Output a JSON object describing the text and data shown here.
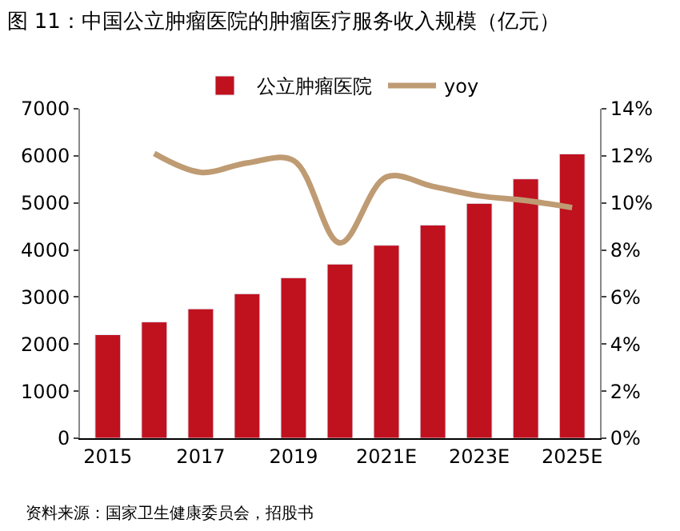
{
  "chart_data": {
    "type": "bar",
    "title": "图 11：中国公立肿瘤医院的肿瘤医疗服务收入规模（亿元）",
    "categories": [
      "2015",
      null,
      "2017",
      null,
      "2019",
      null,
      "2021E",
      null,
      "2023E",
      null,
      "2025E"
    ],
    "series": [
      {
        "name": "公立肿瘤医院",
        "color": "#c0111f",
        "values": [
          2200,
          2470,
          2750,
          3070,
          3410,
          3700,
          4100,
          4530,
          4990,
          5510,
          6040
        ]
      },
      {
        "name": "yoy",
        "type": "line",
        "axis": "y2",
        "color": "#bf9b73",
        "values": [
          null,
          12.1,
          11.3,
          11.7,
          11.8,
          8.3,
          11.1,
          10.7,
          10.3,
          10.1,
          9.8
        ]
      }
    ],
    "ylim": [
      0,
      7000
    ],
    "yticks": [
      0,
      1000,
      2000,
      3000,
      4000,
      5000,
      6000,
      7000
    ],
    "y2lim": [
      0,
      14
    ],
    "y2ticks": [
      {
        "value": 0,
        "label": "0%"
      },
      {
        "value": 2,
        "label": "2%"
      },
      {
        "value": 4,
        "label": "4%"
      },
      {
        "value": 6,
        "label": "6%"
      },
      {
        "value": 8,
        "label": "8%"
      },
      {
        "value": 10,
        "label": "10%"
      },
      {
        "value": 12,
        "label": "12%"
      },
      {
        "value": 14,
        "label": "14%"
      }
    ],
    "legend": "top",
    "marker": "none",
    "annotations": [
      "资料来源：国家卫生健康委员会，招股书"
    ]
  }
}
